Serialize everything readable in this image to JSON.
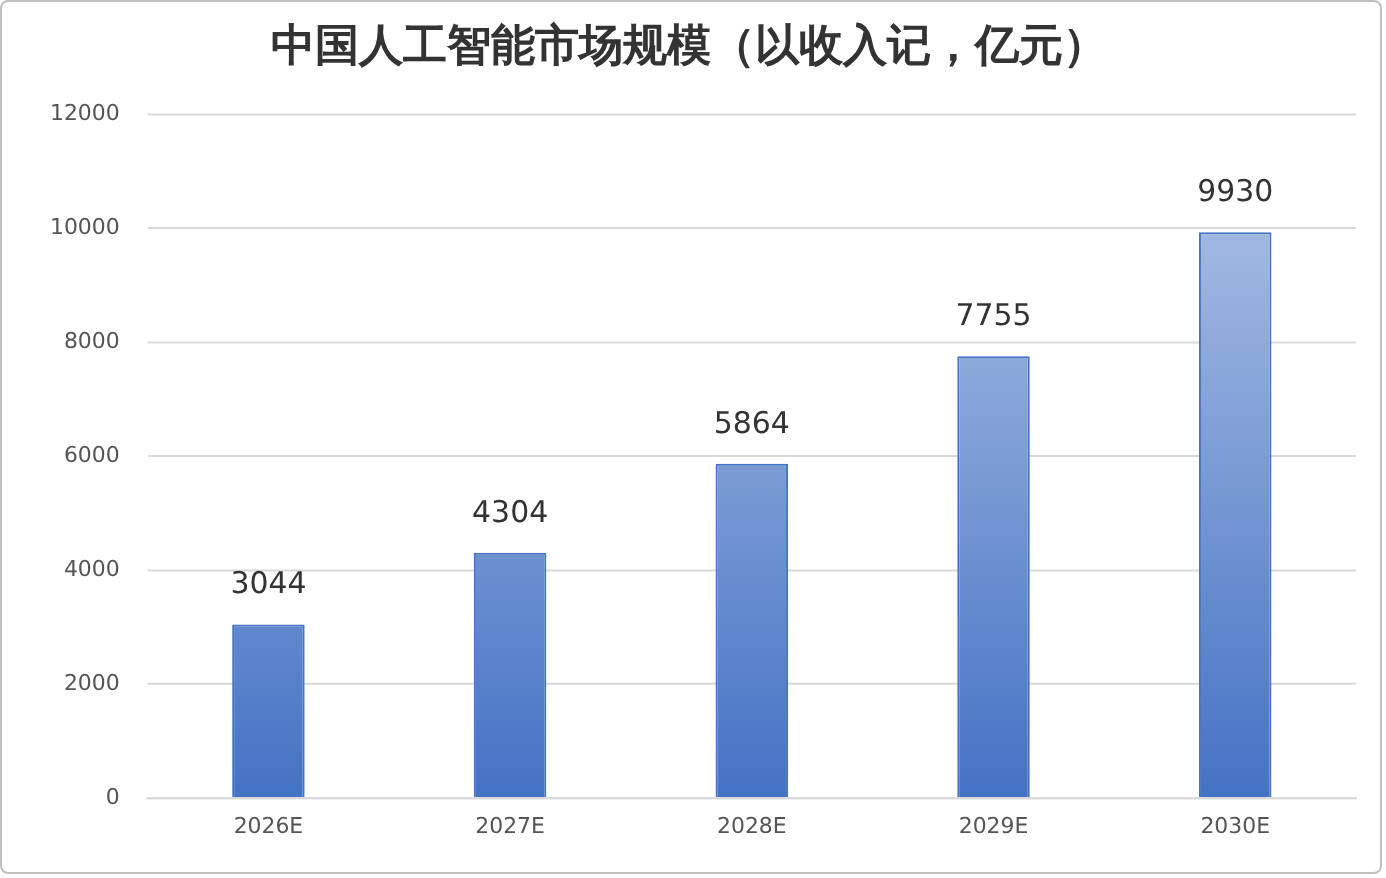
{
  "chart_data": {
    "type": "bar",
    "title": "中国人工智能市场规模（以收入记，亿元）",
    "categories": [
      "2026E",
      "2027E",
      "2028E",
      "2029E",
      "2030E"
    ],
    "values": [
      3044,
      4304,
      5864,
      7755,
      9930
    ],
    "color": "#4472c4",
    "ylim": [
      0,
      12000
    ],
    "yticks": [
      0,
      2000,
      4000,
      6000,
      8000,
      10000,
      12000
    ],
    "grid": "y",
    "data_labels": true
  }
}
